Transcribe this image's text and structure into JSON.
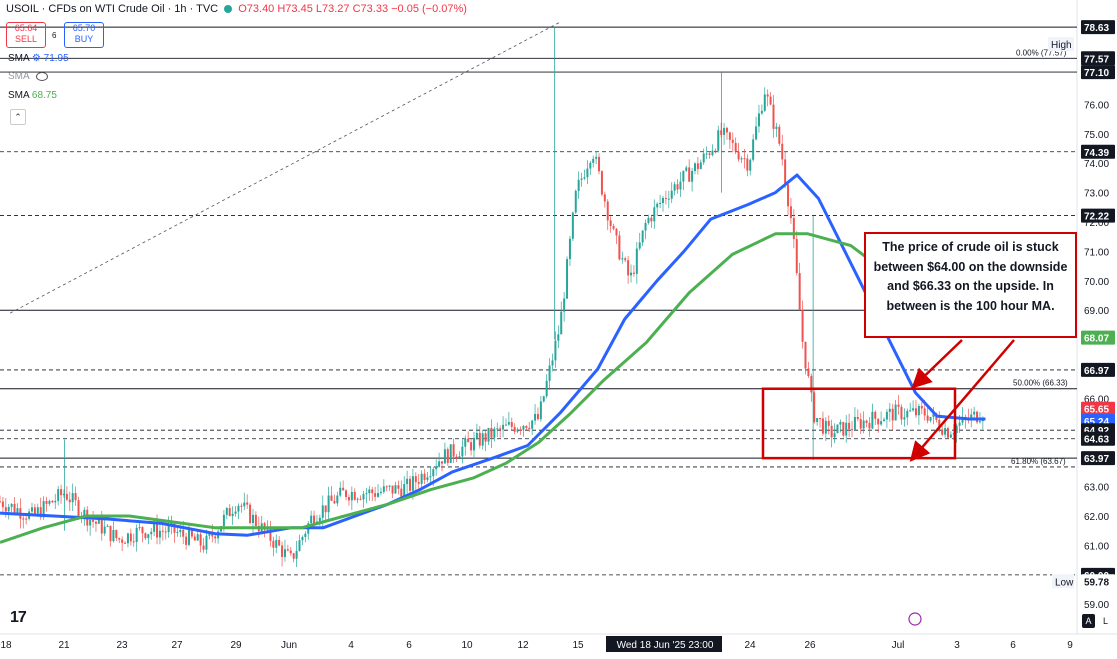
{
  "header": {
    "title": "USOIL · CFDs on WTI Crude Oil · 1h · TVC",
    "ohlc": "O73.40 H73.45 L73.27 C73.33 −0.05 (−0.07%)",
    "sell_price": "65.64",
    "sell_label": "SELL",
    "spread": "6",
    "buy_price": "65.70",
    "buy_label": "BUY"
  },
  "indicators": [
    {
      "label": "SMA",
      "value": "71.95",
      "color": "#2962ff"
    },
    {
      "label": "SMA",
      "value": "",
      "color": "#9598a1"
    },
    {
      "label": "SMA",
      "value": "68.75",
      "color": "#4caf50"
    }
  ],
  "annotation": "The price of crude oil is stuck between $64.00 on the downside and $66.33 on the upside. In between is the 100 hour MA.",
  "fib_labels": [
    {
      "label": "0.00% (77.57)",
      "value": 77.57
    },
    {
      "label": "50.00% (66.33)",
      "value": 66.33
    },
    {
      "label": "61.80% (63.67)",
      "value": 63.67
    }
  ],
  "footer": {
    "btn_a": "A",
    "btn_l": "L"
  },
  "chart_data": {
    "type": "candlestick",
    "symbol": "USOIL",
    "interval": "1h",
    "ylim": [
      59,
      78.8
    ],
    "y_ticks": [
      59,
      60,
      61,
      62,
      63,
      64,
      65,
      66,
      67,
      68,
      69,
      70,
      71,
      72,
      73,
      74,
      75,
      76
    ],
    "x_ticks": [
      "18",
      "21",
      "23",
      "27",
      "29",
      "Jun",
      "4",
      "6",
      "10",
      "12",
      "15",
      "Wed 18 Jun '25  23:00",
      "24",
      "26",
      "Jul",
      "3",
      "6",
      "9"
    ],
    "price_labels": [
      {
        "text": "High",
        "value": 78.05,
        "kind": "tag"
      },
      {
        "text": "78.63",
        "value": 78.63,
        "bg": "#131722",
        "fg": "#ffffff"
      },
      {
        "text": "77.57",
        "value": 77.57,
        "bg": "#131722",
        "fg": "#ffffff"
      },
      {
        "text": "77.10",
        "value": 77.1,
        "bg": "#131722",
        "fg": "#ffffff"
      },
      {
        "text": "74.39",
        "value": 74.39,
        "bg": "#131722",
        "fg": "#ffffff"
      },
      {
        "text": "72.22",
        "value": 72.22,
        "bg": "#131722",
        "fg": "#ffffff"
      },
      {
        "text": "68.07",
        "value": 68.07,
        "bg": "#4caf50",
        "fg": "#ffffff"
      },
      {
        "text": "66.97",
        "value": 66.97,
        "bg": "#131722",
        "fg": "#ffffff"
      },
      {
        "text": "65.65",
        "value": 65.65,
        "bg": "#f23645",
        "fg": "#ffffff"
      },
      {
        "text": "65.24",
        "value": 65.24,
        "bg": "#2962ff",
        "fg": "#ffffff"
      },
      {
        "text": "64.92",
        "value": 64.92,
        "bg": "#131722",
        "fg": "#ffffff"
      },
      {
        "text": "64.63",
        "value": 64.63,
        "bg": "#131722",
        "fg": "#ffffff"
      },
      {
        "text": "63.97",
        "value": 63.97,
        "bg": "#131722",
        "fg": "#ffffff"
      },
      {
        "text": "60.00",
        "value": 60.0,
        "bg": "#131722",
        "fg": "#ffffff"
      },
      {
        "text": "Low",
        "value": 59.78,
        "kind": "tag"
      },
      {
        "text": "59.78",
        "value": 59.78,
        "bg": "#ffffff",
        "fg": "#131722"
      }
    ],
    "horizontal_lines": [
      {
        "value": 78.63,
        "style": "solid"
      },
      {
        "value": 77.57,
        "style": "solid"
      },
      {
        "value": 77.1,
        "style": "solid"
      },
      {
        "value": 74.39,
        "style": "dashed"
      },
      {
        "value": 72.22,
        "style": "dashed"
      },
      {
        "value": 69.0,
        "style": "solid"
      },
      {
        "value": 66.97,
        "style": "dashed"
      },
      {
        "value": 66.33,
        "style": "solid"
      },
      {
        "value": 64.92,
        "style": "dashed"
      },
      {
        "value": 64.63,
        "style": "dashed"
      },
      {
        "value": 63.97,
        "style": "solid"
      },
      {
        "value": 63.67,
        "style": "dashed"
      },
      {
        "value": 60.0,
        "style": "dashed"
      }
    ],
    "price_path": [
      [
        0,
        62.5
      ],
      [
        0.03,
        62.0
      ],
      [
        0.06,
        62.8
      ],
      [
        0.08,
        62.0
      ],
      [
        0.11,
        61.2
      ],
      [
        0.13,
        61.5
      ],
      [
        0.16,
        61.5
      ],
      [
        0.19,
        61.0
      ],
      [
        0.22,
        62.5
      ],
      [
        0.245,
        61.5
      ],
      [
        0.27,
        60.5
      ],
      [
        0.29,
        62.0
      ],
      [
        0.32,
        62.8
      ],
      [
        0.35,
        62.8
      ],
      [
        0.38,
        63.0
      ],
      [
        0.41,
        64.0
      ],
      [
        0.44,
        64.5
      ],
      [
        0.47,
        65.0
      ],
      [
        0.5,
        65.3
      ],
      [
        0.52,
        68.5
      ],
      [
        0.535,
        73.0
      ],
      [
        0.55,
        74.5
      ],
      [
        0.57,
        71.5
      ],
      [
        0.585,
        70.0
      ],
      [
        0.6,
        72.0
      ],
      [
        0.62,
        73.0
      ],
      [
        0.65,
        74.0
      ],
      [
        0.67,
        75.0
      ],
      [
        0.695,
        74.0
      ],
      [
        0.71,
        76.5
      ],
      [
        0.725,
        74.5
      ],
      [
        0.735,
        72.0
      ],
      [
        0.745,
        68.0
      ],
      [
        0.755,
        65.5
      ],
      [
        0.77,
        64.8
      ],
      [
        0.8,
        65.2
      ],
      [
        0.83,
        65.5
      ],
      [
        0.86,
        65.5
      ],
      [
        0.88,
        64.9
      ],
      [
        0.9,
        65.3
      ],
      [
        0.915,
        65.6
      ]
    ],
    "series": [
      {
        "name": "SMA",
        "color": "#2962ff",
        "values": [
          [
            0,
            62.1
          ],
          [
            0.05,
            62.0
          ],
          [
            0.1,
            61.9
          ],
          [
            0.15,
            61.75
          ],
          [
            0.2,
            61.4
          ],
          [
            0.23,
            61.35
          ],
          [
            0.27,
            61.6
          ],
          [
            0.3,
            61.6
          ],
          [
            0.33,
            62.0
          ],
          [
            0.36,
            62.4
          ],
          [
            0.39,
            62.9
          ],
          [
            0.42,
            63.5
          ],
          [
            0.46,
            64.0
          ],
          [
            0.49,
            64.4
          ],
          [
            0.52,
            65.5
          ],
          [
            0.555,
            67.0
          ],
          [
            0.58,
            68.7
          ],
          [
            0.61,
            70.0
          ],
          [
            0.635,
            71.0
          ],
          [
            0.66,
            72.1
          ],
          [
            0.695,
            72.6
          ],
          [
            0.72,
            73.0
          ],
          [
            0.74,
            73.6
          ],
          [
            0.76,
            72.8
          ],
          [
            0.79,
            70.6
          ],
          [
            0.82,
            68.4
          ],
          [
            0.85,
            66.2
          ],
          [
            0.87,
            65.4
          ],
          [
            0.9,
            65.3
          ],
          [
            0.915,
            65.3
          ]
        ]
      },
      {
        "name": "SMA",
        "color": "#4caf50",
        "values": [
          [
            0,
            61.1
          ],
          [
            0.04,
            61.6
          ],
          [
            0.08,
            62.0
          ],
          [
            0.12,
            62.0
          ],
          [
            0.16,
            61.8
          ],
          [
            0.2,
            61.6
          ],
          [
            0.24,
            61.6
          ],
          [
            0.28,
            61.6
          ],
          [
            0.32,
            62.0
          ],
          [
            0.36,
            62.4
          ],
          [
            0.4,
            62.9
          ],
          [
            0.44,
            63.3
          ],
          [
            0.47,
            63.8
          ],
          [
            0.5,
            64.5
          ],
          [
            0.53,
            65.5
          ],
          [
            0.56,
            66.6
          ],
          [
            0.6,
            67.9
          ],
          [
            0.64,
            69.6
          ],
          [
            0.68,
            70.9
          ],
          [
            0.72,
            71.6
          ],
          [
            0.75,
            71.6
          ],
          [
            0.79,
            71.2
          ],
          [
            0.83,
            70.1
          ],
          [
            0.86,
            69.5
          ]
        ]
      }
    ]
  }
}
